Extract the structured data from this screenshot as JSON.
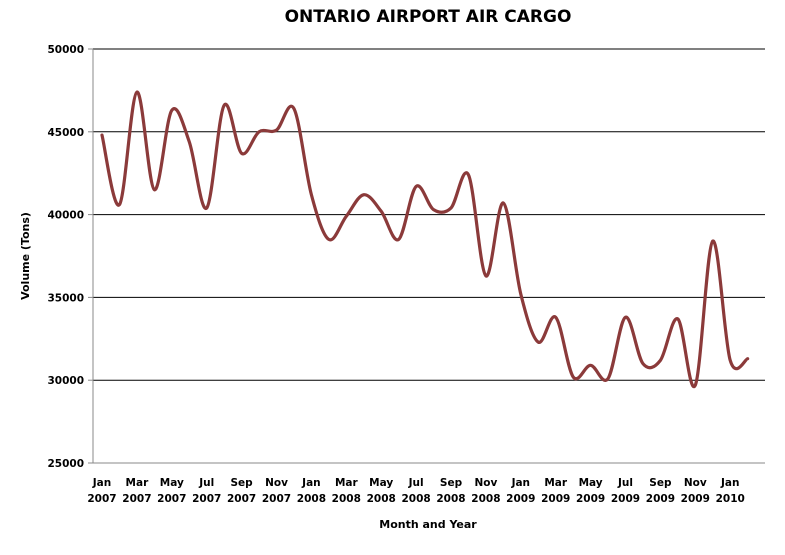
{
  "chart_data": {
    "type": "line",
    "title": "ONTARIO AIRPORT AIR CARGO",
    "xlabel": "Month and Year",
    "ylabel": "Volume (Tons)",
    "ylim": [
      25000,
      50000
    ],
    "y_ticks": [
      25000,
      30000,
      35000,
      40000,
      45000,
      50000
    ],
    "grid": true,
    "legend": "none",
    "line_color": "#8b3a3a",
    "x_tick_labels": [
      {
        "month": "Jan",
        "year": "2007"
      },
      {
        "month": "Mar",
        "year": "2007"
      },
      {
        "month": "May",
        "year": "2007"
      },
      {
        "month": "Jul",
        "year": "2007"
      },
      {
        "month": "Sep",
        "year": "2007"
      },
      {
        "month": "Nov",
        "year": "2007"
      },
      {
        "month": "Jan",
        "year": "2008"
      },
      {
        "month": "Mar",
        "year": "2008"
      },
      {
        "month": "May",
        "year": "2008"
      },
      {
        "month": "Jul",
        "year": "2008"
      },
      {
        "month": "Sep",
        "year": "2008"
      },
      {
        "month": "Nov",
        "year": "2008"
      },
      {
        "month": "Jan",
        "year": "2009"
      },
      {
        "month": "Mar",
        "year": "2009"
      },
      {
        "month": "May",
        "year": "2009"
      },
      {
        "month": "Jul",
        "year": "2009"
      },
      {
        "month": "Sep",
        "year": "2009"
      },
      {
        "month": "Nov",
        "year": "2009"
      },
      {
        "month": "Jan",
        "year": "2010"
      }
    ],
    "x": [
      "2007-01",
      "2007-02",
      "2007-03",
      "2007-04",
      "2007-05",
      "2007-06",
      "2007-07",
      "2007-08",
      "2007-09",
      "2007-10",
      "2007-11",
      "2007-12",
      "2008-01",
      "2008-02",
      "2008-03",
      "2008-04",
      "2008-05",
      "2008-06",
      "2008-07",
      "2008-08",
      "2008-09",
      "2008-10",
      "2008-11",
      "2008-12",
      "2009-01",
      "2009-02",
      "2009-03",
      "2009-04",
      "2009-05",
      "2009-06",
      "2009-07",
      "2009-08",
      "2009-09",
      "2009-10",
      "2009-11",
      "2009-12",
      "2010-01",
      "2010-02"
    ],
    "series": [
      {
        "values": [
          44800,
          40600,
          47400,
          41500,
          46300,
          44400,
          40400,
          46600,
          43700,
          45000,
          45100,
          46400,
          41200,
          38500,
          39900,
          41200,
          40200,
          38500,
          41700,
          40300,
          40400,
          42400,
          36300,
          40700,
          35200,
          32300,
          33800,
          30200,
          30900,
          30100,
          33800,
          31000,
          31200,
          33700,
          29700,
          38400,
          31200,
          31300
        ]
      }
    ]
  }
}
